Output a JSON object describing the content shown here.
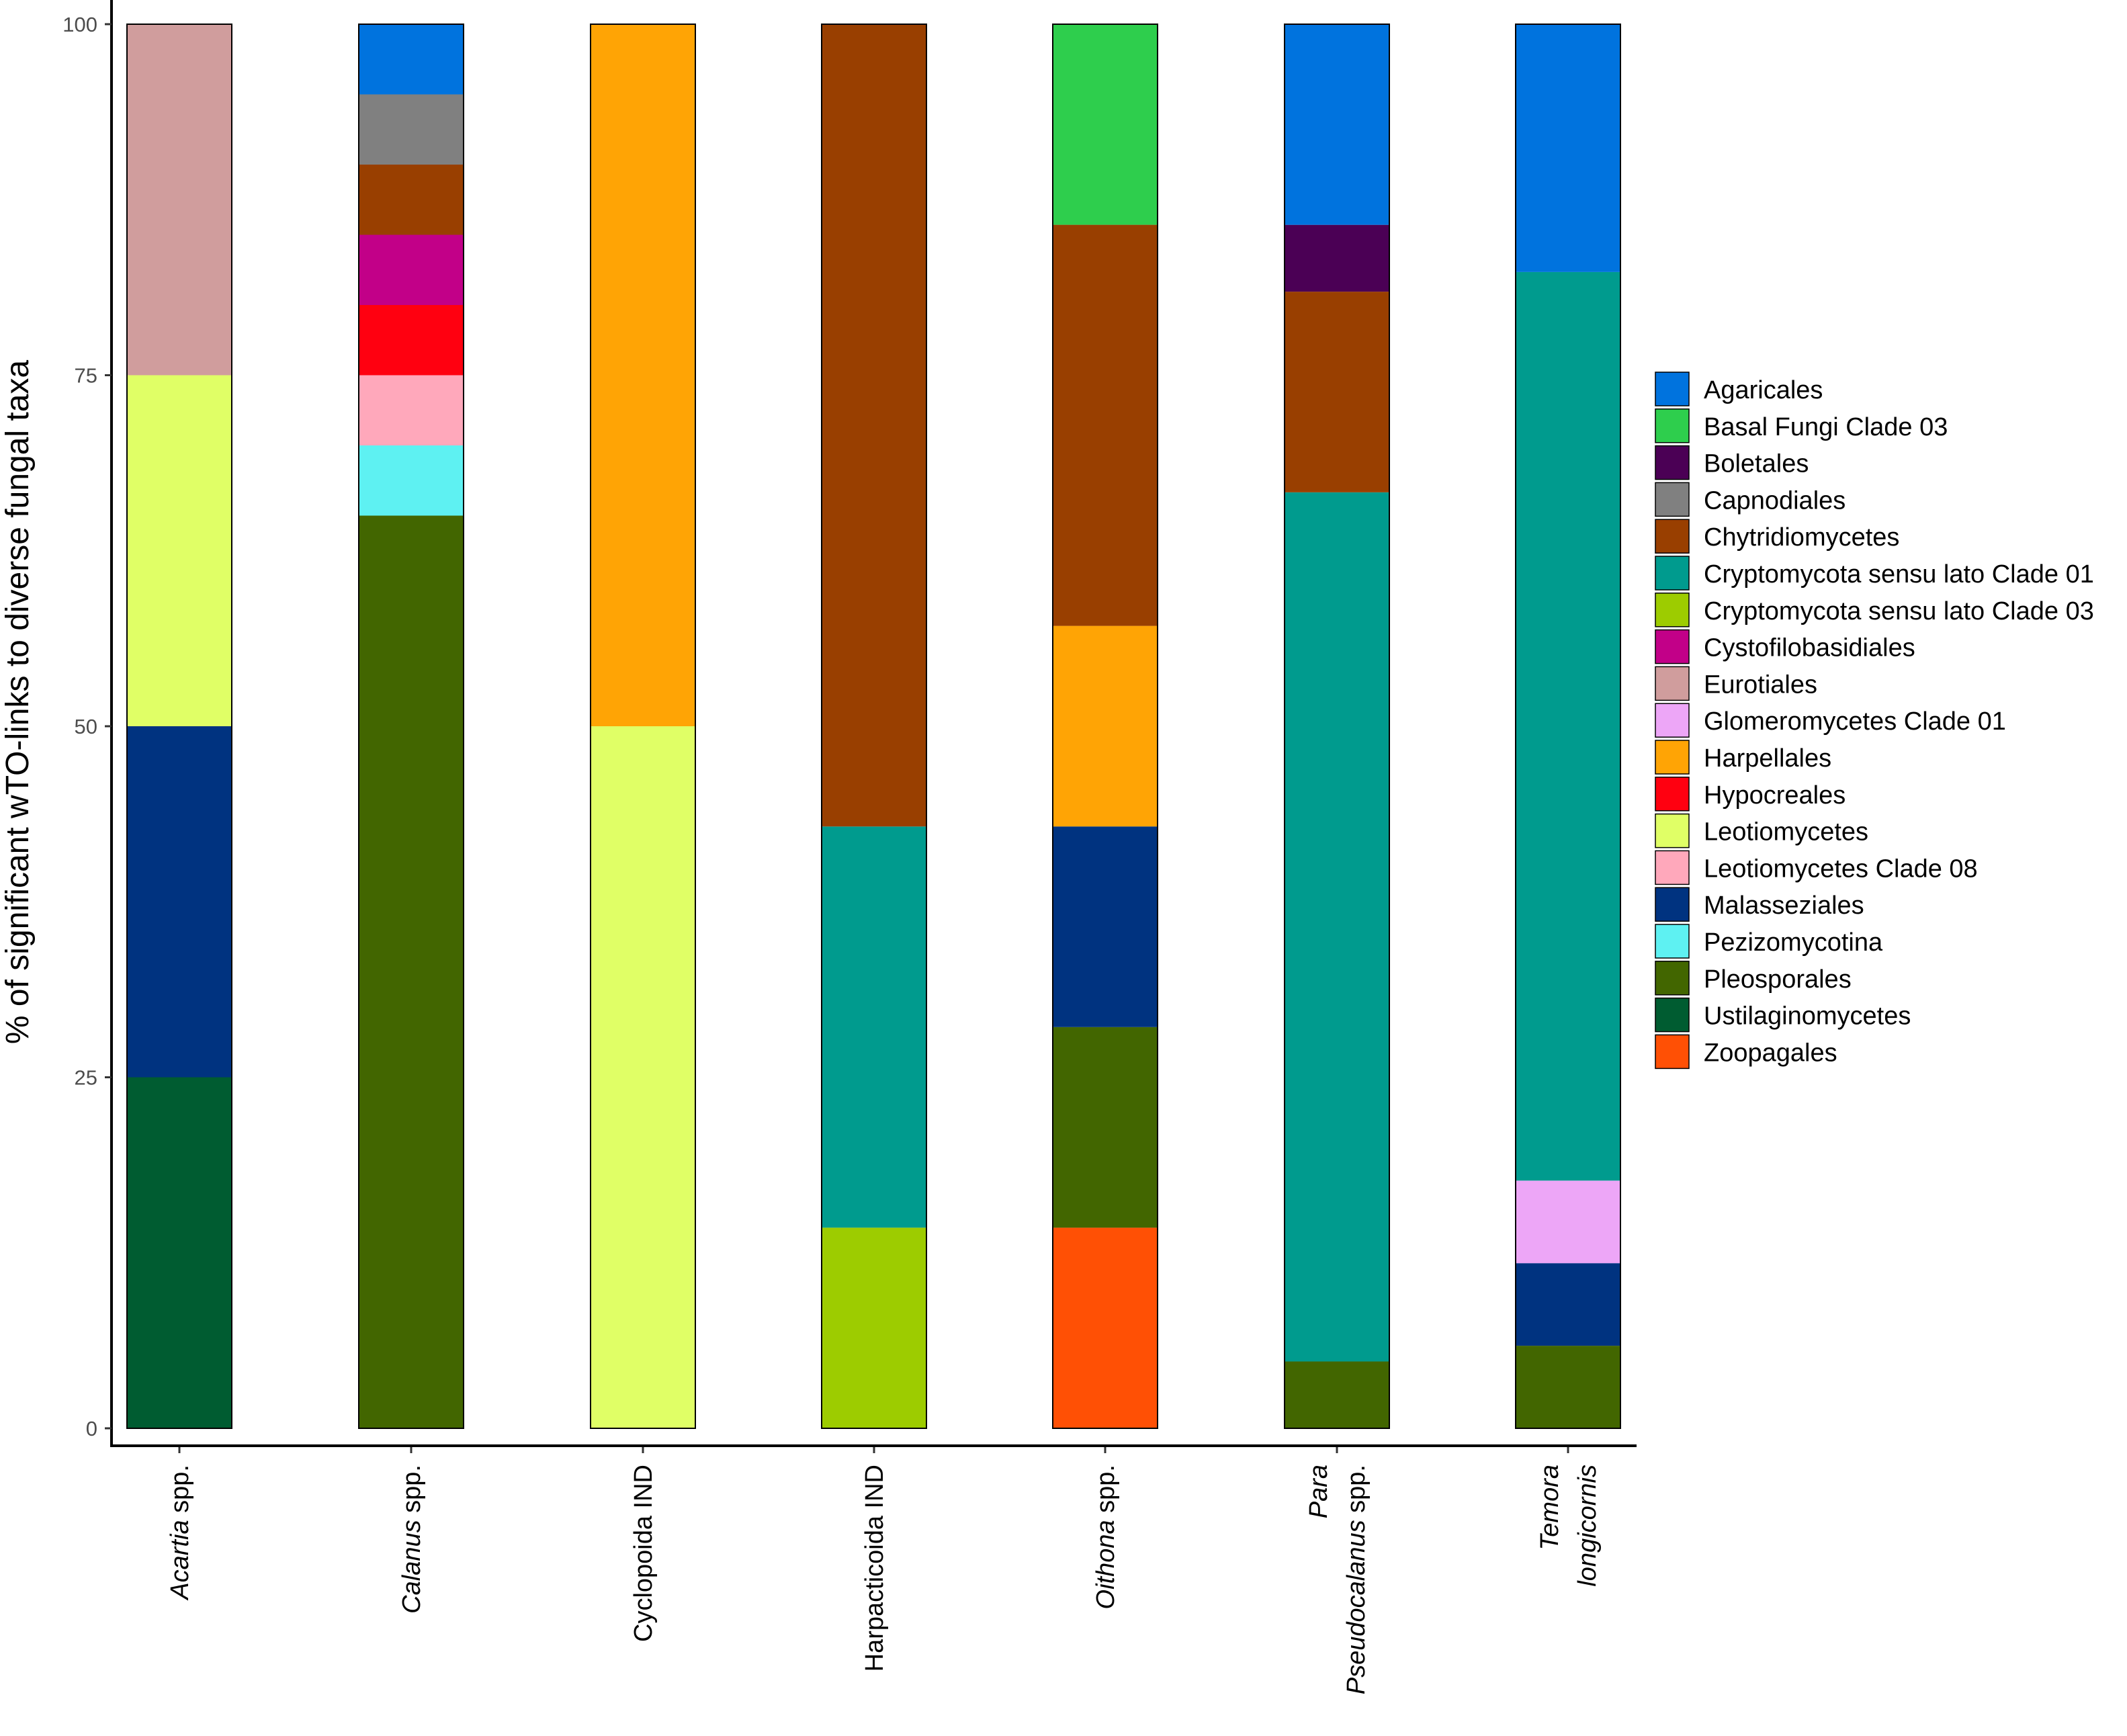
{
  "chart_data": {
    "type": "bar",
    "stacked": true,
    "ylabel": "% of significant wTO-links to diverse fungal taxa",
    "xlabel": "",
    "ylim": [
      0,
      100
    ],
    "yticks": [
      0,
      25,
      50,
      75,
      100
    ],
    "grid": false,
    "legend_position": "right",
    "categories": [
      {
        "id": "acartia",
        "lines": [
          [
            {
              "text": "Acartia",
              "italic": true
            },
            {
              "text": " spp.",
              "italic": false
            }
          ]
        ]
      },
      {
        "id": "calanus",
        "lines": [
          [
            {
              "text": "Calanus",
              "italic": true
            },
            {
              "text": " spp.",
              "italic": false
            }
          ]
        ]
      },
      {
        "id": "cyclopoida",
        "lines": [
          [
            {
              "text": "Cyclopoida IND",
              "italic": false
            }
          ]
        ]
      },
      {
        "id": "harpacticoida",
        "lines": [
          [
            {
              "text": "Harpacticoida IND",
              "italic": false
            }
          ]
        ]
      },
      {
        "id": "oithona",
        "lines": [
          [
            {
              "text": "Oithona",
              "italic": true
            },
            {
              "text": " spp.",
              "italic": false
            }
          ]
        ]
      },
      {
        "id": "para-pseudocalanus",
        "lines": [
          [
            {
              "text": "Para",
              "italic": true
            }
          ],
          [
            {
              "text": "Pseudocalanus",
              "italic": true
            },
            {
              "text": " spp.",
              "italic": false
            }
          ]
        ]
      },
      {
        "id": "temora",
        "lines": [
          [
            {
              "text": "Temora",
              "italic": true
            }
          ],
          [
            {
              "text": "longicornis",
              "italic": true
            }
          ]
        ]
      }
    ],
    "series": [
      {
        "name": "Agaricales",
        "color": "#0073DE",
        "values": [
          0,
          5,
          0,
          0,
          0,
          14.29,
          17.65
        ]
      },
      {
        "name": "Basal Fungi Clade 03",
        "color": "#2ECE4D",
        "values": [
          0,
          0,
          0,
          0,
          14.29,
          0,
          0
        ]
      },
      {
        "name": "Boletales",
        "color": "#4B0055",
        "values": [
          0,
          0,
          0,
          0,
          0,
          4.76,
          0
        ]
      },
      {
        "name": "Capnodiales",
        "color": "#808080",
        "values": [
          0,
          5,
          0,
          0,
          0,
          0,
          0
        ]
      },
      {
        "name": "Chytridiomycetes",
        "color": "#993F00",
        "values": [
          0,
          5,
          0,
          57.14,
          28.57,
          14.29,
          0
        ]
      },
      {
        "name": "Cryptomycota sensu lato Clade 01",
        "color": "#009B8E",
        "values": [
          0,
          0,
          0,
          28.57,
          0,
          61.9,
          64.71
        ]
      },
      {
        "name": "Cryptomycota sensu lato Clade 03",
        "color": "#9DCC00",
        "values": [
          0,
          0,
          0,
          14.29,
          0,
          0,
          0
        ]
      },
      {
        "name": "Cystofilobasidiales",
        "color": "#C20088",
        "values": [
          0,
          5,
          0,
          0,
          0,
          0,
          0
        ]
      },
      {
        "name": "Eurotiales",
        "color": "#D09D9D",
        "values": [
          25,
          0,
          0,
          0,
          0,
          0,
          0
        ]
      },
      {
        "name": "Glomeromycetes Clade 01",
        "color": "#EDA6F7",
        "values": [
          0,
          0,
          0,
          0,
          0,
          0,
          5.88
        ]
      },
      {
        "name": "Harpellales",
        "color": "#FFA405",
        "values": [
          0,
          0,
          50,
          0,
          14.29,
          0,
          0
        ]
      },
      {
        "name": "Hypocreales",
        "color": "#FF0010",
        "values": [
          0,
          5,
          0,
          0,
          0,
          0,
          0
        ]
      },
      {
        "name": "Leotiomycetes",
        "color": "#E0FF66",
        "values": [
          25,
          0,
          50,
          0,
          0,
          0,
          0
        ]
      },
      {
        "name": "Leotiomycetes Clade 08",
        "color": "#FFA8BB",
        "values": [
          0,
          5,
          0,
          0,
          0,
          0,
          0
        ]
      },
      {
        "name": "Malasseziales",
        "color": "#003380",
        "values": [
          25,
          0,
          0,
          0,
          14.29,
          0,
          5.88
        ]
      },
      {
        "name": "Pezizomycotina",
        "color": "#5EF1F2",
        "values": [
          0,
          5,
          0,
          0,
          0,
          0,
          0
        ]
      },
      {
        "name": "Pleosporales",
        "color": "#426600",
        "values": [
          0,
          65,
          0,
          0,
          14.29,
          4.76,
          5.88
        ]
      },
      {
        "name": "Ustilaginomycetes",
        "color": "#005C31",
        "values": [
          25,
          0,
          0,
          0,
          0,
          0,
          0
        ]
      },
      {
        "name": "Zoopagales",
        "color": "#FF5005",
        "values": [
          0,
          0,
          0,
          0,
          14.29,
          0,
          0
        ]
      }
    ]
  }
}
